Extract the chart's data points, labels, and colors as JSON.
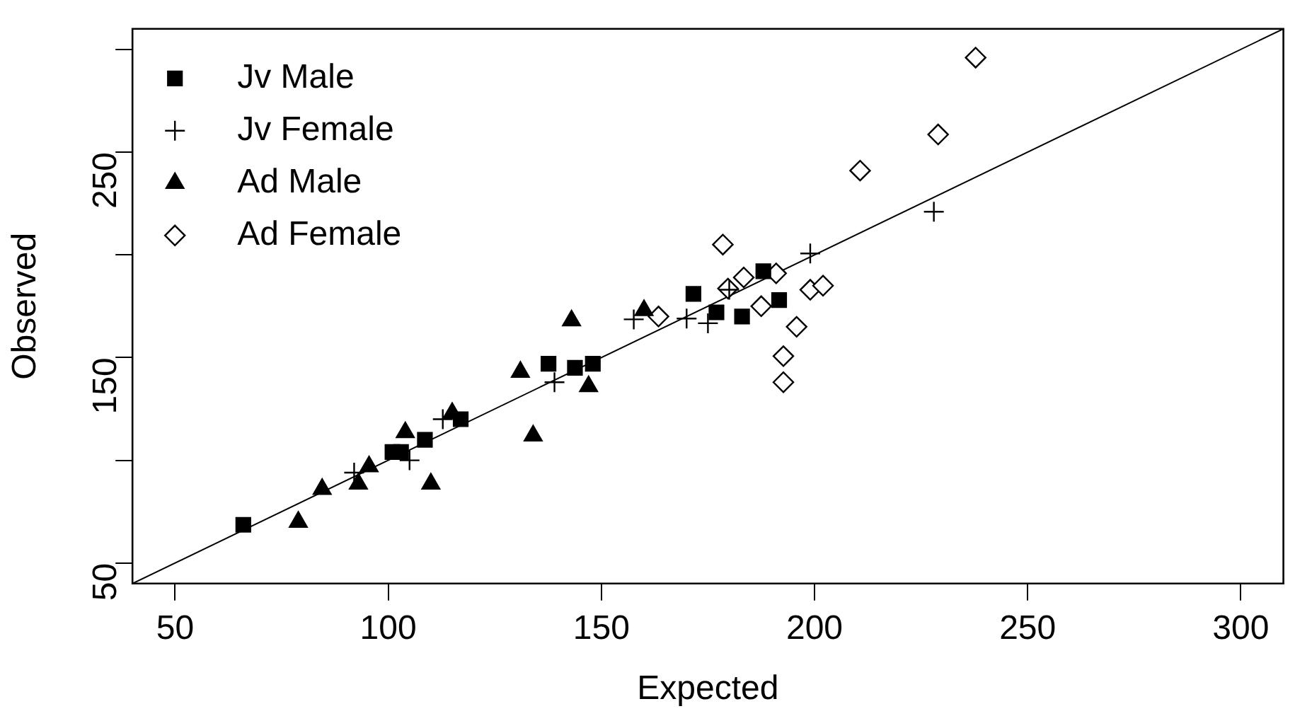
{
  "chart_data": {
    "type": "scatter",
    "xlabel": "Expected",
    "ylabel": "Observed",
    "xlim": [
      40,
      310
    ],
    "ylim": [
      40,
      310
    ],
    "xticks": [
      50,
      100,
      150,
      200,
      250,
      300
    ],
    "yticks": [
      50,
      {
        "value": 100,
        "label": null
      },
      150,
      {
        "value": 200,
        "label": null
      },
      250,
      {
        "value": 300,
        "label": null
      }
    ],
    "legend": "top left",
    "grid": false,
    "series": [
      {
        "name": "Jv Male",
        "color": "#000000",
        "marker": "square",
        "x": [
          66,
          101,
          103,
          108.6,
          117,
          137.6,
          143.8,
          148,
          171.6,
          177,
          183,
          188,
          191.7
        ],
        "values": [
          68.6,
          104,
          104,
          110,
          120,
          147,
          145,
          147,
          181,
          172,
          170,
          192,
          178
        ]
      },
      {
        "name": "Jv Female",
        "color": "#000000",
        "marker": "cross",
        "x": [
          92,
          105,
          112.8,
          139,
          157.6,
          170,
          175,
          180,
          199,
          228
        ],
        "values": [
          94,
          100,
          120,
          138,
          168.6,
          169,
          166.7,
          183,
          200.7,
          221
        ]
      },
      {
        "name": "Ad Male",
        "color": "#000000",
        "marker": "triangle",
        "x": [
          78.9,
          84.5,
          93,
          95.5,
          104,
          110,
          115,
          131,
          134,
          143,
          147,
          160
        ],
        "values": [
          70,
          86,
          88.6,
          97,
          113.6,
          88.6,
          123,
          143,
          112,
          168,
          136,
          173
        ]
      },
      {
        "name": "Ad Female",
        "color": "#000000",
        "marker": "diamond",
        "x": [
          237.8,
          229,
          210.7,
          178.5,
          163.4,
          179.7,
          183.4,
          187.5,
          191,
          199,
          202,
          195.8,
          192.7,
          192.7
        ],
        "values": [
          296,
          258.6,
          241,
          205,
          170,
          183.6,
          189,
          175,
          191,
          183,
          185,
          165,
          150.7,
          138
        ]
      },
      {
        "type": "line",
        "color": "#000000",
        "marker": "none",
        "line_style": "solid",
        "x": [
          40,
          310
        ],
        "values": [
          40,
          310
        ]
      }
    ]
  }
}
